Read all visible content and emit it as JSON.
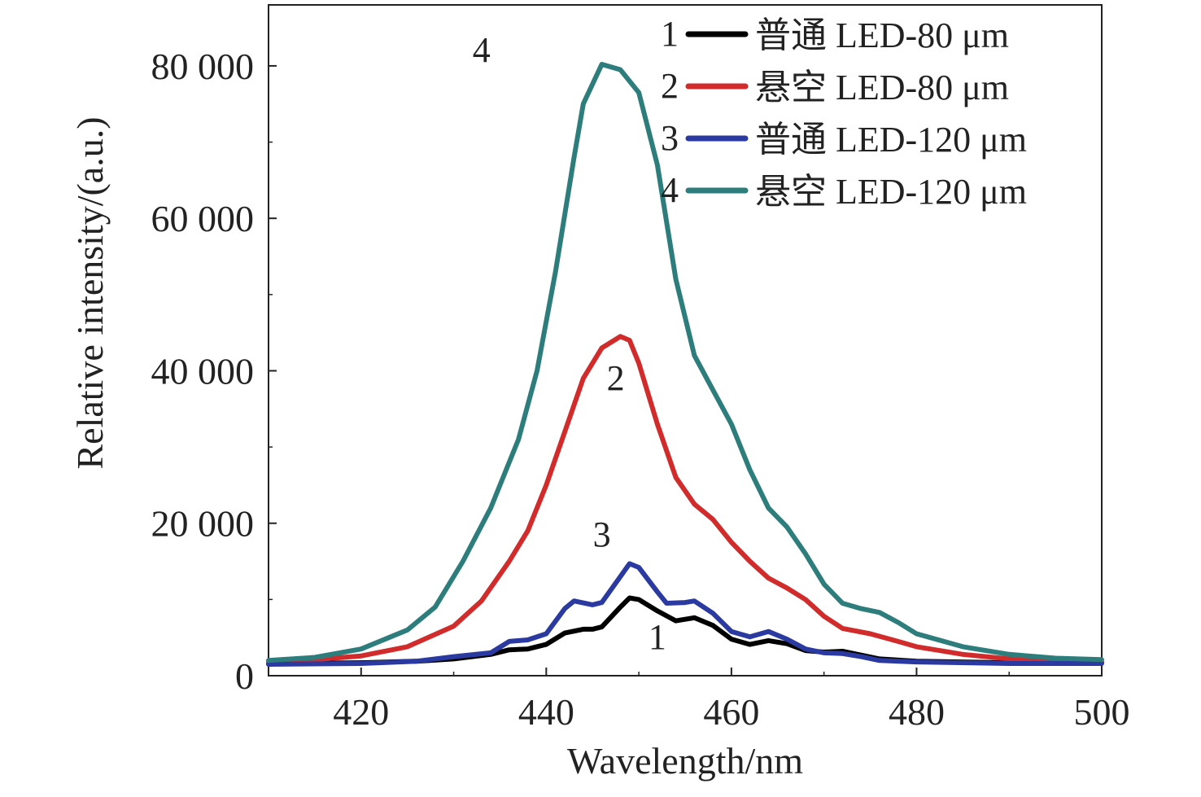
{
  "chart_data": {
    "type": "line",
    "xlabel": "Wavelength/nm",
    "ylabel": "Relative intensity/(a.u.)",
    "xlim": [
      410,
      500
    ],
    "ylim": [
      0,
      88000
    ],
    "x_ticks": [
      420,
      440,
      460,
      480,
      500
    ],
    "x_tick_labels": [
      "420",
      "440",
      "460",
      "480",
      "500"
    ],
    "y_ticks": [
      0,
      20000,
      40000,
      60000,
      80000
    ],
    "y_tick_labels": [
      "0",
      "20 000",
      "40 000",
      "60 000",
      "80 000"
    ],
    "grid": false,
    "legend_position": "top-right",
    "series": [
      {
        "id": "1",
        "name": "普通 LED-80 μm",
        "curve_label": "1",
        "color": "#000000",
        "points": [
          [
            410,
            1600
          ],
          [
            420,
            1700
          ],
          [
            426,
            1900
          ],
          [
            430,
            2200
          ],
          [
            434,
            2800
          ],
          [
            436,
            3400
          ],
          [
            438,
            3500
          ],
          [
            440,
            4100
          ],
          [
            442,
            5600
          ],
          [
            444,
            6100
          ],
          [
            445,
            6100
          ],
          [
            446,
            6400
          ],
          [
            448,
            9000
          ],
          [
            449,
            10200
          ],
          [
            450,
            10000
          ],
          [
            452,
            8500
          ],
          [
            454,
            7200
          ],
          [
            456,
            7600
          ],
          [
            458,
            6600
          ],
          [
            460,
            4800
          ],
          [
            462,
            4100
          ],
          [
            464,
            4600
          ],
          [
            466,
            4200
          ],
          [
            468,
            3300
          ],
          [
            470,
            3100
          ],
          [
            472,
            3200
          ],
          [
            474,
            2700
          ],
          [
            476,
            2200
          ],
          [
            480,
            1900
          ],
          [
            490,
            1700
          ],
          [
            500,
            1700
          ]
        ]
      },
      {
        "id": "2",
        "name": "悬空 LED-80 μm",
        "curve_label": "2",
        "color": "#d22b2b",
        "points": [
          [
            410,
            1900
          ],
          [
            415,
            2100
          ],
          [
            420,
            2600
          ],
          [
            425,
            3800
          ],
          [
            430,
            6500
          ],
          [
            433,
            9800
          ],
          [
            436,
            15000
          ],
          [
            438,
            19000
          ],
          [
            440,
            25000
          ],
          [
            442,
            32000
          ],
          [
            444,
            39000
          ],
          [
            446,
            43000
          ],
          [
            448,
            44500
          ],
          [
            449,
            44000
          ],
          [
            450,
            41000
          ],
          [
            452,
            33000
          ],
          [
            454,
            26000
          ],
          [
            456,
            22500
          ],
          [
            458,
            20500
          ],
          [
            460,
            17500
          ],
          [
            462,
            15000
          ],
          [
            464,
            12800
          ],
          [
            466,
            11500
          ],
          [
            468,
            10000
          ],
          [
            470,
            7800
          ],
          [
            472,
            6200
          ],
          [
            475,
            5500
          ],
          [
            478,
            4500
          ],
          [
            480,
            3800
          ],
          [
            485,
            2800
          ],
          [
            490,
            2200
          ],
          [
            495,
            1900
          ],
          [
            500,
            1800
          ]
        ]
      },
      {
        "id": "3",
        "name": "普通 LED-120 μm",
        "curve_label": "3",
        "color": "#2b3aa0",
        "points": [
          [
            410,
            1500
          ],
          [
            420,
            1600
          ],
          [
            426,
            1900
          ],
          [
            430,
            2500
          ],
          [
            434,
            3000
          ],
          [
            436,
            4500
          ],
          [
            438,
            4700
          ],
          [
            440,
            5500
          ],
          [
            442,
            8800
          ],
          [
            443,
            9800
          ],
          [
            445,
            9300
          ],
          [
            446,
            9600
          ],
          [
            448,
            13000
          ],
          [
            449,
            14700
          ],
          [
            450,
            14200
          ],
          [
            452,
            11000
          ],
          [
            453,
            9500
          ],
          [
            455,
            9600
          ],
          [
            456,
            9800
          ],
          [
            458,
            8200
          ],
          [
            460,
            5800
          ],
          [
            462,
            5100
          ],
          [
            464,
            5800
          ],
          [
            466,
            4800
          ],
          [
            468,
            3500
          ],
          [
            470,
            3000
          ],
          [
            472,
            2900
          ],
          [
            474,
            2500
          ],
          [
            476,
            2000
          ],
          [
            480,
            1800
          ],
          [
            490,
            1600
          ],
          [
            500,
            1600
          ]
        ]
      },
      {
        "id": "4",
        "name": "悬空 LED-120 μm",
        "curve_label": "4",
        "color": "#2e7d7d",
        "points": [
          [
            410,
            2000
          ],
          [
            415,
            2400
          ],
          [
            420,
            3500
          ],
          [
            425,
            6000
          ],
          [
            428,
            9000
          ],
          [
            431,
            15000
          ],
          [
            434,
            22000
          ],
          [
            437,
            31000
          ],
          [
            439,
            40000
          ],
          [
            441,
            53000
          ],
          [
            443,
            68000
          ],
          [
            444,
            75000
          ],
          [
            446,
            80200
          ],
          [
            448,
            79500
          ],
          [
            450,
            76500
          ],
          [
            452,
            67000
          ],
          [
            454,
            52000
          ],
          [
            456,
            42000
          ],
          [
            458,
            37500
          ],
          [
            460,
            33000
          ],
          [
            462,
            27000
          ],
          [
            464,
            22000
          ],
          [
            466,
            19500
          ],
          [
            468,
            16000
          ],
          [
            470,
            12000
          ],
          [
            472,
            9500
          ],
          [
            474,
            8800
          ],
          [
            476,
            8300
          ],
          [
            478,
            7000
          ],
          [
            480,
            5500
          ],
          [
            485,
            3800
          ],
          [
            490,
            2800
          ],
          [
            495,
            2300
          ],
          [
            500,
            2100
          ]
        ]
      }
    ],
    "legend_entries": [
      {
        "marker": "1",
        "text": "普通 LED-80 μm",
        "color": "#000000"
      },
      {
        "marker": "2",
        "text": "悬空 LED-80 μm",
        "color": "#d22b2b"
      },
      {
        "marker": "3",
        "text": "普通 LED-120 μm",
        "color": "#2b3aa0"
      },
      {
        "marker": "4",
        "text": "悬空 LED-120 μm",
        "color": "#2e7d7d"
      }
    ]
  }
}
